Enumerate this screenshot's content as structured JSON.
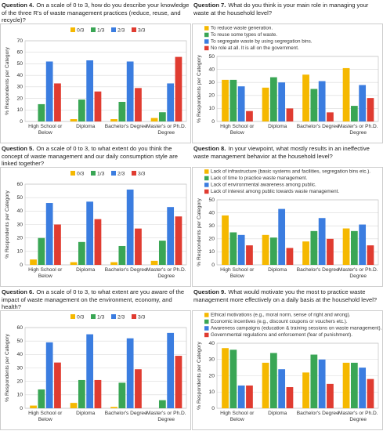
{
  "chart_data": [
    {
      "type": "bar",
      "label": "Question 4.",
      "title": "On a scale of 0 to 3, how do you describe your knowledge of the three R's of waste management practices (reduce, reuse, and recycle)?",
      "ylabel": "% Respondents per Category",
      "legend": "horizontal",
      "grid": true,
      "categories": [
        "High School or Below",
        "Diploma",
        "Bachelor's Degree",
        "Master's or Ph.D. Degree"
      ],
      "series": [
        {
          "name": "0/3",
          "color": "#f5b800",
          "values": [
            0,
            2,
            2,
            3
          ]
        },
        {
          "name": "1/3",
          "color": "#3aa655",
          "values": [
            15,
            19,
            17,
            8
          ]
        },
        {
          "name": "2/3",
          "color": "#3b7de0",
          "values": [
            52,
            53,
            52,
            33
          ]
        },
        {
          "name": "3/3",
          "color": "#e03c31",
          "values": [
            33,
            26,
            29,
            56
          ]
        }
      ],
      "ylim": [
        0,
        70
      ],
      "yticks": [
        0,
        10,
        20,
        30,
        40,
        50,
        60,
        70
      ]
    },
    {
      "type": "bar",
      "label": "Question 5.",
      "title": "On a scale of 0 to 3, to what extent do you think the concept of waste management and our daily consumption style are linked together?",
      "ylabel": "% Respondents per Category",
      "legend": "horizontal",
      "grid": true,
      "categories": [
        "High School or Below",
        "Diploma",
        "Bachelor's Degree",
        "Master's or Ph.D. Degree"
      ],
      "series": [
        {
          "name": "0/3",
          "color": "#f5b800",
          "values": [
            4,
            2,
            2,
            3
          ]
        },
        {
          "name": "1/3",
          "color": "#3aa655",
          "values": [
            20,
            17,
            14,
            18
          ]
        },
        {
          "name": "2/3",
          "color": "#3b7de0",
          "values": [
            46,
            47,
            56,
            43
          ]
        },
        {
          "name": "3/3",
          "color": "#e03c31",
          "values": [
            30,
            34,
            27,
            36
          ]
        }
      ],
      "ylim": [
        0,
        60
      ],
      "yticks": [
        0,
        10,
        20,
        30,
        40,
        50,
        60
      ]
    },
    {
      "type": "bar",
      "label": "Question 6.",
      "title": "On a scale of 0 to 3, to what extent are you aware of the impact of waste management on the environment, economy, and health?",
      "ylabel": "% Respondents per Category",
      "legend": "horizontal",
      "grid": true,
      "categories": [
        "High School or Below",
        "Diploma",
        "Bachelor's Degree",
        "Master's or Ph.D. Degree"
      ],
      "series": [
        {
          "name": "0/3",
          "color": "#f5b800",
          "values": [
            2,
            4,
            1,
            0
          ]
        },
        {
          "name": "1/3",
          "color": "#3aa655",
          "values": [
            14,
            21,
            19,
            6
          ]
        },
        {
          "name": "2/3",
          "color": "#3b7de0",
          "values": [
            49,
            55,
            52,
            56
          ]
        },
        {
          "name": "3/3",
          "color": "#e03c31",
          "values": [
            34,
            21,
            29,
            39
          ]
        }
      ],
      "ylim": [
        0,
        60
      ],
      "yticks": [
        0,
        10,
        20,
        30,
        40,
        50,
        60
      ]
    },
    {
      "type": "bar",
      "label": "Question 7.",
      "title": "What do you think is your main role in managing your waste at the household level?",
      "ylabel": "% Respondents per Category",
      "legend": "vertical",
      "grid": true,
      "categories": [
        "High School or Below",
        "Diploma",
        "Bachelor's Degree",
        "Master's or Ph.D. Degree"
      ],
      "series": [
        {
          "name": "To reduce waste generation.",
          "color": "#f5b800",
          "values": [
            32,
            26,
            36,
            41
          ]
        },
        {
          "name": "To reuse some types of waste.",
          "color": "#3aa655",
          "values": [
            32,
            34,
            25,
            12
          ]
        },
        {
          "name": "To segregate waste by using segregation bins.",
          "color": "#3b7de0",
          "values": [
            27,
            30,
            31,
            28
          ]
        },
        {
          "name": "No role at all. It is all on the government.",
          "color": "#e03c31",
          "values": [
            8,
            10,
            7,
            18
          ]
        }
      ],
      "ylim": [
        0,
        50
      ],
      "yticks": [
        0,
        10,
        20,
        30,
        40,
        50
      ]
    },
    {
      "type": "bar",
      "label": "Question 8.",
      "title": "In your viewpoint, what mostly results in an ineffective waste management behavior at the household level?",
      "ylabel": "% Respondents per Category",
      "legend": "vertical",
      "grid": true,
      "categories": [
        "High School or Below",
        "Diploma",
        "Bachelor's Degree",
        "Master's or Ph.D. Degree"
      ],
      "series": [
        {
          "name": "Lack of infrastructure (basic systems and facilities, segregation bins etc.).",
          "color": "#f5b800",
          "values": [
            38,
            23,
            18,
            28
          ]
        },
        {
          "name": "Lack of time to practice waste management.",
          "color": "#3aa655",
          "values": [
            25,
            21,
            26,
            26
          ]
        },
        {
          "name": "Lack of environmental awareness among public.",
          "color": "#3b7de0",
          "values": [
            23,
            43,
            36,
            31
          ]
        },
        {
          "name": "Lack of interest among public towards waste management.",
          "color": "#e03c31",
          "values": [
            15,
            13,
            20,
            15
          ]
        }
      ],
      "ylim": [
        0,
        50
      ],
      "yticks": [
        0,
        10,
        20,
        30,
        40,
        50
      ]
    },
    {
      "type": "bar",
      "label": "Question 9.",
      "title": "What would motivate you the most to practice waste management more effectively on a daily basis at the household level?",
      "ylabel": "% Respondents per Category",
      "legend": "vertical",
      "grid": true,
      "categories": [
        "High School or Below",
        "Diploma",
        "Bachelor's Degree",
        "Master's or Ph.D. Degree"
      ],
      "series": [
        {
          "name": "Ethical motivations (e.g., moral norm, sense of right and wrong).",
          "color": "#f5b800",
          "values": [
            37,
            28,
            22,
            28
          ]
        },
        {
          "name": "Economic incentives (e.g., discount coupons or vouchers etc.).",
          "color": "#3aa655",
          "values": [
            36,
            34,
            33,
            28
          ]
        },
        {
          "name": "Awareness campaigns (education & training sessions on waste management).",
          "color": "#3b7de0",
          "values": [
            14,
            24,
            30,
            25
          ]
        },
        {
          "name": "Governmental regulations and enforcement (fear of punishment).",
          "color": "#e03c31",
          "values": [
            14,
            13,
            15,
            18
          ]
        }
      ],
      "ylim": [
        0,
        40
      ],
      "yticks": [
        0,
        10,
        20,
        30,
        40
      ]
    }
  ]
}
